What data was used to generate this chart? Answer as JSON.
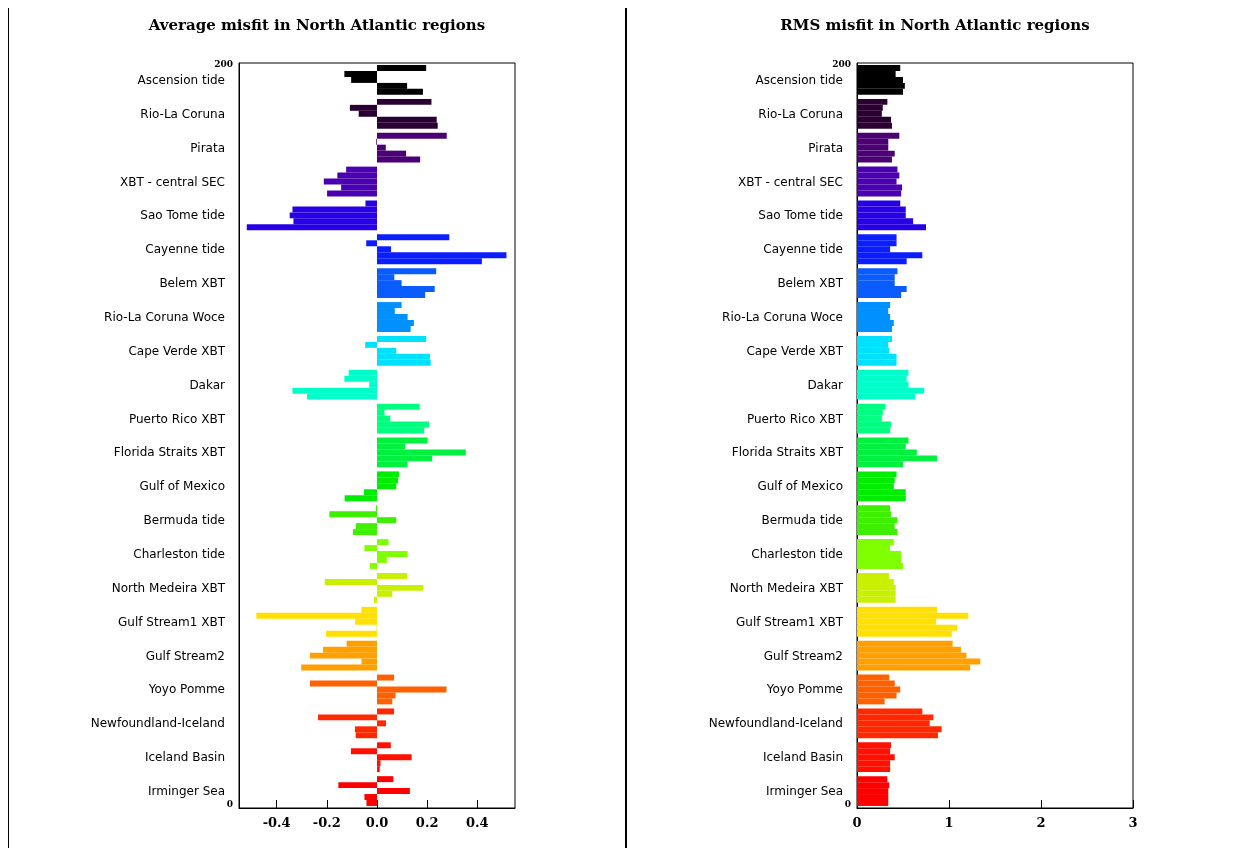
{
  "chart_data": [
    {
      "type": "bar",
      "orientation": "horizontal",
      "title": "Average misfit in North Atlantic regions",
      "categories": [
        "Ascension tide",
        "Rio-La Coruna",
        "Pirata",
        "XBT - central SEC",
        "Sao Tome tide",
        "Cayenne tide",
        "Belem XBT",
        "Rio-La Coruna Woce",
        "Cape Verde XBT",
        "Dakar",
        "Puerto Rico XBT",
        "Florida Straits XBT",
        "Gulf of Mexico",
        "Bermuda tide",
        "Charleston tide",
        "North Medeira XBT",
        "Gulf Stream1 XBT",
        "Gulf Stream2",
        "Yoyo Pomme",
        "Newfoundland-Iceland",
        "Iceland Basin",
        "Irminger Sea"
      ],
      "series": [
        {
          "colors": [
            "#000000",
            "#2a0033",
            "#4b0073",
            "#4a00b0",
            "#2800e6",
            "#0a1eff",
            "#0a5cff",
            "#0090ff",
            "#00e0ff",
            "#00ffc8",
            "#00ff80",
            "#00f040",
            "#00ec00",
            "#3ef000",
            "#80ff00",
            "#c8f000",
            "#ffe000",
            "#ffa000",
            "#ff6000",
            "#ff2800",
            "#ff1000",
            "#ff0000"
          ],
          "values": [
            0.196,
            0.217,
            0.278,
            -0.123,
            -0.046,
            0.288,
            0.236,
            0.098,
            0.196,
            -0.113,
            0.17,
            0.202,
            0.088,
            -0.004,
            0.046,
            0.12,
            -0.062,
            -0.121,
            0.068,
            0.068,
            0.055,
            0.065
          ]
        },
        {
          "colors": [
            "#000000",
            "#2a0033",
            "#4b0073",
            "#4a00b0",
            "#2800e6",
            "#0a1eff",
            "#0a5cff",
            "#0090ff",
            "#00e0ff",
            "#00ffc8",
            "#00ff80",
            "#00f040",
            "#00ec00",
            "#3ef000",
            "#80ff00",
            "#c8f000",
            "#ffe000",
            "#ffa000",
            "#ff6000",
            "#ff2800",
            "#ff1000",
            "#ff0000"
          ],
          "values": [
            -0.13,
            -0.108,
            -0.003,
            -0.158,
            -0.337,
            -0.043,
            0.069,
            0.071,
            -0.047,
            -0.13,
            0.03,
            0.113,
            0.084,
            -0.19,
            -0.05,
            -0.208,
            -0.481,
            -0.215,
            -0.267,
            -0.235,
            -0.104,
            -0.154
          ]
        },
        {
          "colors": [
            "#000000",
            "#2a0033",
            "#4b0073",
            "#4a00b0",
            "#2800e6",
            "#0a1eff",
            "#0a5cff",
            "#0090ff",
            "#00e0ff",
            "#00ffc8",
            "#00ff80",
            "#00f040",
            "#00ec00",
            "#3ef000",
            "#80ff00",
            "#c8f000",
            "#ffe000",
            "#ffa000",
            "#ff6000",
            "#ff2800",
            "#ff1000",
            "#ff0000"
          ],
          "values": [
            -0.103,
            -0.073,
            0.035,
            -0.212,
            -0.348,
            0.056,
            0.098,
            0.122,
            0.077,
            -0.031,
            0.053,
            0.354,
            0.077,
            0.077,
            0.122,
            0.185,
            -0.087,
            -0.267,
            0.277,
            0.036,
            0.138,
            0.131
          ]
        },
        {
          "colors": [
            "#000000",
            "#2a0033",
            "#4b0073",
            "#4a00b0",
            "#2800e6",
            "#0a1eff",
            "#0a5cff",
            "#0090ff",
            "#00e0ff",
            "#00ffc8",
            "#00ff80",
            "#00f040",
            "#00ec00",
            "#3ef000",
            "#80ff00",
            "#c8f000",
            "#ffe000",
            "#ffa000",
            "#ff6000",
            "#ff2800",
            "#ff1000",
            "#ff0000"
          ],
          "values": [
            0.12,
            0.238,
            0.116,
            -0.143,
            -0.333,
            0.516,
            0.23,
            0.147,
            0.211,
            -0.337,
            0.208,
            0.22,
            -0.052,
            -0.084,
            0.039,
            0.061,
            -0.002,
            -0.062,
            0.074,
            -0.088,
            0.014,
            -0.05
          ]
        },
        {
          "colors": [
            "#000000",
            "#2a0033",
            "#4b0073",
            "#4a00b0",
            "#2800e6",
            "#0a1eff",
            "#0a5cff",
            "#0090ff",
            "#00e0ff",
            "#00ffc8",
            "#00ff80",
            "#00f040",
            "#00ec00",
            "#3ef000",
            "#80ff00",
            "#c8f000",
            "#ffe000",
            "#ffa000",
            "#ff6000",
            "#ff2800",
            "#ff1000",
            "#ff0000"
          ],
          "values": [
            0.183,
            0.242,
            0.172,
            -0.199,
            -0.519,
            0.418,
            0.192,
            0.134,
            0.214,
            -0.279,
            0.188,
            0.122,
            -0.129,
            -0.096,
            -0.029,
            -0.012,
            -0.203,
            -0.302,
            0.061,
            -0.085,
            0.011,
            -0.042
          ]
        }
      ],
      "xlim": [
        -0.55,
        0.55
      ],
      "xticks": [
        -0.4,
        -0.2,
        {
          "value": 0,
          "label": "0.0"
        },
        0.2,
        0.4
      ],
      "annotations": [
        "200",
        "0"
      ]
    },
    {
      "type": "bar",
      "orientation": "horizontal",
      "title": "RMS misfit in North Atlantic regions",
      "categories": [
        "Ascension tide",
        "Rio-La Coruna",
        "Pirata",
        "XBT - central SEC",
        "Sao Tome tide",
        "Cayenne tide",
        "Belem XBT",
        "Rio-La Coruna Woce",
        "Cape Verde XBT",
        "Dakar",
        "Puerto Rico XBT",
        "Florida Straits XBT",
        "Gulf of Mexico",
        "Bermuda tide",
        "Charleston tide",
        "North Medeira XBT",
        "Gulf Stream1 XBT",
        "Gulf Stream2",
        "Yoyo Pomme",
        "Newfoundland-Iceland",
        "Iceland Basin",
        "Irminger Sea"
      ],
      "series": [
        {
          "colors": [
            "#000000",
            "#2a0033",
            "#4b0073",
            "#4a00b0",
            "#2800e6",
            "#0a1eff",
            "#0a5cff",
            "#0090ff",
            "#00e0ff",
            "#00ffc8",
            "#00ff80",
            "#00f040",
            "#00ec00",
            "#3ef000",
            "#80ff00",
            "#c8f000",
            "#ffe000",
            "#ffa000",
            "#ff6000",
            "#ff2800",
            "#ff1000",
            "#ff0000"
          ],
          "values": [
            0.47,
            0.33,
            0.46,
            0.44,
            0.47,
            0.43,
            0.44,
            0.36,
            0.38,
            0.56,
            0.31,
            0.56,
            0.43,
            0.36,
            0.4,
            0.35,
            0.87,
            1.04,
            0.35,
            0.71,
            0.37,
            0.33
          ]
        },
        {
          "colors": [
            "#000000",
            "#2a0033",
            "#4b0073",
            "#4a00b0",
            "#2800e6",
            "#0a1eff",
            "#0a5cff",
            "#0090ff",
            "#00e0ff",
            "#00ffc8",
            "#00ff80",
            "#00f040",
            "#00ec00",
            "#3ef000",
            "#80ff00",
            "#c8f000",
            "#ffe000",
            "#ffa000",
            "#ff6000",
            "#ff2800",
            "#ff1000",
            "#ff0000"
          ],
          "values": [
            0.42,
            0.28,
            0.34,
            0.46,
            0.53,
            0.43,
            0.41,
            0.34,
            0.34,
            0.54,
            0.28,
            0.53,
            0.41,
            0.37,
            0.36,
            0.4,
            1.21,
            1.13,
            0.41,
            0.83,
            0.36,
            0.35
          ]
        },
        {
          "colors": [
            "#000000",
            "#2a0033",
            "#4b0073",
            "#4a00b0",
            "#2800e6",
            "#0a1eff",
            "#0a5cff",
            "#0090ff",
            "#00e0ff",
            "#00ffc8",
            "#00ff80",
            "#00f040",
            "#00ec00",
            "#3ef000",
            "#80ff00",
            "#c8f000",
            "#ffe000",
            "#ffa000",
            "#ff6000",
            "#ff2800",
            "#ff1000",
            "#ff0000"
          ],
          "values": [
            0.5,
            0.27,
            0.34,
            0.43,
            0.53,
            0.36,
            0.41,
            0.36,
            0.35,
            0.56,
            0.27,
            0.65,
            0.4,
            0.44,
            0.48,
            0.42,
            0.86,
            1.19,
            0.47,
            0.79,
            0.41,
            0.34
          ]
        },
        {
          "colors": [
            "#000000",
            "#2a0033",
            "#4b0073",
            "#4a00b0",
            "#2800e6",
            "#0a1eff",
            "#0a5cff",
            "#0090ff",
            "#00e0ff",
            "#00ffc8",
            "#00ff80",
            "#00f040",
            "#00ec00",
            "#3ef000",
            "#80ff00",
            "#c8f000",
            "#ffe000",
            "#ffa000",
            "#ff6000",
            "#ff2800",
            "#ff1000",
            "#ff0000"
          ],
          "values": [
            0.52,
            0.37,
            0.41,
            0.49,
            0.61,
            0.71,
            0.54,
            0.4,
            0.43,
            0.73,
            0.37,
            0.87,
            0.53,
            0.41,
            0.48,
            0.42,
            1.09,
            1.34,
            0.43,
            0.92,
            0.36,
            0.34
          ]
        },
        {
          "colors": [
            "#000000",
            "#2a0033",
            "#4b0073",
            "#4a00b0",
            "#2800e6",
            "#0a1eff",
            "#0a5cff",
            "#0090ff",
            "#00e0ff",
            "#00ffc8",
            "#00ff80",
            "#00f040",
            "#00ec00",
            "#3ef000",
            "#80ff00",
            "#c8f000",
            "#ffe000",
            "#ffa000",
            "#ff6000",
            "#ff2800",
            "#ff1000",
            "#ff0000"
          ],
          "values": [
            0.5,
            0.38,
            0.38,
            0.48,
            0.75,
            0.54,
            0.48,
            0.38,
            0.43,
            0.63,
            0.36,
            0.5,
            0.53,
            0.44,
            0.5,
            0.42,
            1.03,
            1.23,
            0.3,
            0.88,
            0.36,
            0.34
          ]
        }
      ],
      "xlim": [
        0,
        3
      ],
      "xticks": [
        0,
        1,
        2,
        3
      ],
      "annotations": [
        "200",
        "0"
      ]
    }
  ]
}
